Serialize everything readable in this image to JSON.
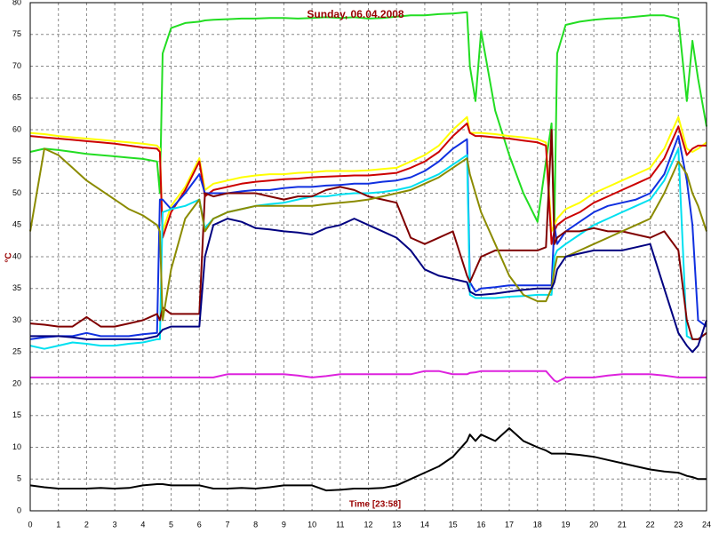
{
  "chart_data": {
    "type": "line",
    "title": "Sunday, 06.04.2008",
    "ylabel": "°C",
    "xlabel": "Time [23:58]",
    "grid": true,
    "xlim": [
      0,
      24
    ],
    "ylim": [
      0,
      80
    ],
    "xticks": [
      0,
      1,
      2,
      3,
      4,
      5,
      6,
      7,
      8,
      9,
      10,
      11,
      12,
      13,
      14,
      15,
      16,
      17,
      18,
      19,
      20,
      21,
      22,
      23,
      24
    ],
    "yticks": [
      0,
      5,
      10,
      15,
      20,
      25,
      30,
      35,
      40,
      45,
      50,
      55,
      60,
      65,
      70,
      75,
      80
    ],
    "x": [
      0,
      0.5,
      1,
      1.5,
      2,
      2.5,
      3,
      3.5,
      4,
      4.5,
      4.6,
      4.7,
      5,
      5.5,
      6,
      6.2,
      6.5,
      7,
      7.5,
      8,
      8.5,
      9,
      9.5,
      10,
      10.5,
      11,
      11.5,
      12,
      12.5,
      13,
      13.5,
      14,
      14.5,
      15,
      15.5,
      15.6,
      15.8,
      16,
      16.5,
      17,
      17.5,
      18,
      18.3,
      18.5,
      18.6,
      18.7,
      19,
      19.5,
      20,
      20.5,
      21,
      21.5,
      22,
      22.5,
      23,
      23.3,
      23.5,
      23.7,
      24
    ],
    "series": [
      {
        "color": "#22dd22",
        "values": [
          56.5,
          57,
          56.8,
          56.5,
          56.2,
          56,
          55.8,
          55.6,
          55.4,
          55,
          50,
          72,
          76,
          76.8,
          77,
          77.2,
          77.3,
          77.4,
          77.5,
          77.5,
          77.6,
          77.6,
          77.5,
          77.6,
          77.7,
          77.6,
          77.7,
          77.5,
          77.6,
          77.8,
          78,
          78,
          78.2,
          78.3,
          78.5,
          70,
          64.5,
          75.5,
          63,
          56,
          50,
          45.5,
          55,
          61,
          45,
          72,
          76.5,
          77,
          77.3,
          77.5,
          77.6,
          77.8,
          78,
          78,
          77.5,
          64.5,
          74,
          68,
          60.5
        ]
      },
      {
        "color": "#ffff00",
        "values": [
          59.5,
          59.3,
          59,
          58.8,
          58.6,
          58.4,
          58.2,
          58,
          57.8,
          57.5,
          57,
          44,
          48,
          51,
          55.5,
          50.5,
          51.5,
          52,
          52.5,
          52.8,
          53,
          53,
          53.2,
          53.3,
          53.5,
          53.5,
          53.5,
          53.6,
          53.8,
          54,
          55,
          56,
          57.5,
          60,
          62,
          59.5,
          59.5,
          59.5,
          59.3,
          59,
          58.8,
          58.5,
          58,
          44,
          45,
          46,
          47.5,
          48.5,
          50,
          51,
          52,
          53,
          54,
          57,
          62,
          57,
          56.5,
          57,
          58
        ]
      },
      {
        "color": "#cc0000",
        "values": [
          59,
          58.8,
          58.6,
          58.4,
          58.2,
          58,
          57.8,
          57.5,
          57.2,
          57,
          56.5,
          43,
          47,
          50.5,
          55,
          49.5,
          50.5,
          51,
          51.5,
          51.8,
          52,
          52.2,
          52.3,
          52.5,
          52.6,
          52.7,
          52.8,
          52.8,
          53,
          53.2,
          54,
          55,
          56.5,
          59,
          61,
          59.5,
          59,
          59,
          58.8,
          58.6,
          58.3,
          58,
          57.5,
          42,
          44,
          45,
          46,
          47,
          48.5,
          49.5,
          50.5,
          51.5,
          52.5,
          55.5,
          60.5,
          56,
          57,
          57.5,
          57.5
        ]
      },
      {
        "color": "#1030e0",
        "values": [
          27,
          27.3,
          27.5,
          27.5,
          28,
          27.5,
          27.5,
          27.5,
          27.8,
          28,
          49,
          49,
          47.5,
          50,
          53,
          50,
          50,
          50,
          50.3,
          50.5,
          50.5,
          50.8,
          51,
          51,
          51.2,
          51.3,
          51.5,
          51.5,
          51.8,
          52,
          52.5,
          53.5,
          55,
          57,
          58.5,
          36,
          34.5,
          35,
          35.2,
          35.5,
          35.5,
          35.5,
          35.5,
          35.5,
          45,
          42,
          44,
          45.5,
          47,
          48,
          48.5,
          49,
          50,
          53,
          59,
          52,
          45,
          30,
          29
        ]
      },
      {
        "color": "#00e0f0",
        "values": [
          26,
          25.5,
          26,
          26.5,
          26.3,
          26,
          26,
          26.3,
          26.5,
          27,
          27,
          47,
          47.5,
          48,
          49,
          44.5,
          46,
          47,
          47.5,
          48,
          48.3,
          48.5,
          49,
          49.5,
          49.5,
          49.8,
          50,
          50,
          50.2,
          50.5,
          51,
          52,
          53,
          54.5,
          56,
          34,
          33.5,
          33.5,
          33.5,
          33.7,
          33.8,
          34,
          34,
          34,
          40,
          41,
          42,
          43.5,
          45,
          46,
          47,
          48,
          49,
          52,
          57,
          27.5,
          27,
          27,
          28
        ]
      },
      {
        "color": "#800000",
        "values": [
          29.5,
          29.3,
          29,
          29,
          30.5,
          29,
          29,
          29.5,
          30,
          31,
          30,
          32,
          31,
          31,
          31,
          50,
          49.5,
          50,
          50,
          50,
          49.5,
          49,
          49.5,
          49.5,
          50.5,
          51,
          50.5,
          49.5,
          49,
          48.5,
          43,
          42,
          43,
          44,
          37,
          36,
          38,
          40,
          41,
          41,
          41,
          41,
          41.5,
          60,
          42,
          43,
          44,
          44,
          44.5,
          44,
          44,
          43.5,
          43,
          44,
          41,
          30,
          27,
          27,
          28
        ]
      },
      {
        "color": "#8b8b00",
        "values": [
          44,
          57,
          56,
          54,
          52,
          50.5,
          49,
          47.5,
          46.5,
          45,
          44,
          30,
          38,
          46,
          49,
          44,
          46,
          47,
          47.5,
          48,
          48,
          48,
          48,
          48,
          48.3,
          48.5,
          48.7,
          49,
          49.5,
          50,
          50.5,
          51.5,
          52.5,
          54,
          55.5,
          53,
          50,
          47,
          42,
          37,
          34,
          33,
          33,
          35,
          38,
          40,
          40,
          41,
          42,
          43,
          44,
          45,
          46,
          50,
          55,
          53,
          50,
          48,
          44
        ]
      },
      {
        "color": "#000080",
        "values": [
          27.5,
          27.5,
          27.5,
          27.3,
          27,
          27,
          27,
          27,
          27,
          27.5,
          28,
          28.5,
          29,
          29,
          29,
          40,
          45,
          46,
          45.5,
          44.5,
          44.3,
          44,
          43.8,
          43.5,
          44.5,
          45,
          46,
          45,
          44,
          43,
          41,
          38,
          37,
          36.5,
          36,
          34.5,
          34,
          34,
          34.2,
          34.5,
          34.8,
          35,
          35,
          35,
          36,
          38,
          40,
          40.5,
          41,
          41,
          41,
          41.5,
          42,
          35,
          28,
          26,
          25,
          26,
          30
        ]
      },
      {
        "color": "#dd22dd",
        "values": [
          21,
          21,
          21,
          21,
          21,
          21,
          21,
          21,
          21,
          21,
          21,
          21,
          21,
          21,
          21,
          21,
          21,
          21.5,
          21.5,
          21.5,
          21.5,
          21.5,
          21.3,
          21,
          21.2,
          21.5,
          21.5,
          21.5,
          21.5,
          21.5,
          21.5,
          22,
          22,
          21.5,
          21.5,
          21.7,
          21.8,
          22,
          22,
          22,
          22,
          22,
          22,
          21,
          20.5,
          20.3,
          21,
          21,
          21,
          21.3,
          21.5,
          21.5,
          21.5,
          21.3,
          21,
          21,
          21,
          21,
          21
        ]
      },
      {
        "color": "#000000",
        "values": [
          4,
          3.7,
          3.5,
          3.5,
          3.5,
          3.6,
          3.5,
          3.6,
          4,
          4.2,
          4.2,
          4.2,
          4,
          4,
          4,
          3.8,
          3.5,
          3.5,
          3.6,
          3.5,
          3.7,
          4,
          4,
          4,
          3.2,
          3.3,
          3.5,
          3.5,
          3.6,
          4,
          5,
          6,
          7,
          8.5,
          11,
          12,
          11,
          12,
          11,
          13,
          11,
          10,
          9.5,
          9,
          9,
          9,
          9,
          8.8,
          8.5,
          8,
          7.5,
          7,
          6.5,
          6.2,
          6,
          5.5,
          5.3,
          5,
          5
        ]
      }
    ]
  }
}
